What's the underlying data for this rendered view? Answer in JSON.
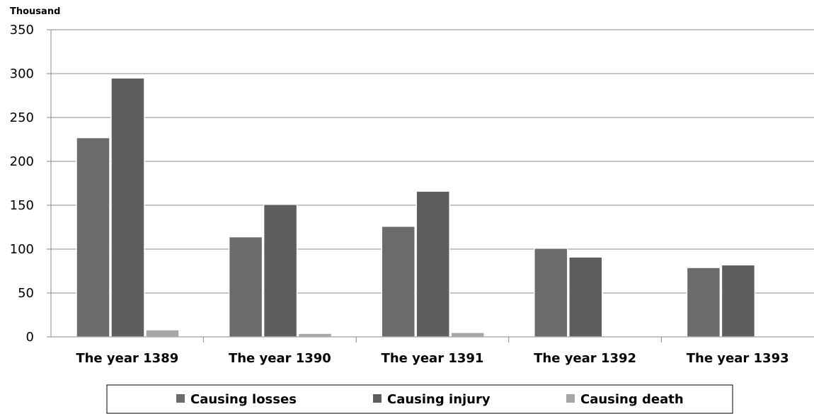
{
  "chart_data": {
    "type": "bar",
    "unit_label": "Thousand",
    "categories": [
      "The year 1389",
      "The year 1390",
      "The year 1391",
      "The year 1392",
      "The year 1393"
    ],
    "series": [
      {
        "name": "Causing losses",
        "values": [
          227,
          114,
          126,
          101,
          79
        ],
        "color": "#6b6b6b"
      },
      {
        "name": "Causing injury",
        "values": [
          295,
          151,
          166,
          91,
          82
        ],
        "color": "#5e5e5e"
      },
      {
        "name": "Causing death",
        "values": [
          8,
          4,
          5,
          1,
          1
        ],
        "color": "#a6a6a6"
      }
    ],
    "ylim": [
      0,
      350
    ],
    "yticks": [
      "0",
      "50",
      "100",
      "150",
      "200",
      "250",
      "300",
      "350"
    ],
    "grid": true,
    "legend_position": "bottom"
  }
}
